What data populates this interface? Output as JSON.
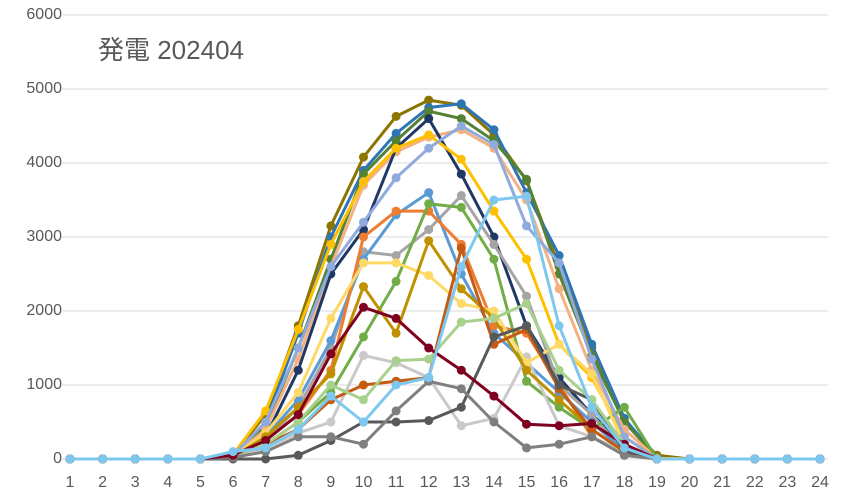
{
  "chart_data": {
    "type": "line",
    "title": "発電 202404",
    "x": [
      1,
      2,
      3,
      4,
      5,
      6,
      7,
      8,
      9,
      10,
      11,
      12,
      13,
      14,
      15,
      16,
      17,
      18,
      19,
      20,
      21,
      22,
      23,
      24
    ],
    "xlim": [
      1,
      24
    ],
    "ylim": [
      0,
      6000
    ],
    "yticks": [
      0,
      1000,
      2000,
      3000,
      4000,
      5000,
      6000
    ],
    "grid": true,
    "series": [
      {
        "color": "#8B7500",
        "values": [
          0,
          0,
          0,
          0,
          0,
          50,
          600,
          1800,
          3150,
          4080,
          4630,
          4850,
          4780,
          4380,
          3760,
          2600,
          1500,
          500,
          50,
          0,
          0,
          0,
          0,
          0
        ]
      },
      {
        "color": "#2E75B6",
        "values": [
          0,
          0,
          0,
          0,
          0,
          50,
          500,
          1700,
          3000,
          3900,
          4400,
          4750,
          4800,
          4450,
          3600,
          2750,
          1550,
          550,
          20,
          0,
          0,
          0,
          0,
          0
        ]
      },
      {
        "color": "#548235",
        "values": [
          0,
          0,
          0,
          0,
          0,
          50,
          450,
          1500,
          2700,
          3850,
          4300,
          4700,
          4600,
          4300,
          3780,
          2500,
          1400,
          500,
          20,
          0,
          0,
          0,
          0,
          0
        ]
      },
      {
        "color": "#F4B183",
        "values": [
          0,
          0,
          0,
          0,
          0,
          40,
          400,
          1350,
          2600,
          3700,
          4150,
          4350,
          4450,
          4200,
          3500,
          2300,
          1200,
          400,
          10,
          0,
          0,
          0,
          0,
          0
        ]
      },
      {
        "color": "#203864",
        "values": [
          0,
          0,
          0,
          0,
          0,
          40,
          300,
          1200,
          2500,
          3100,
          4200,
          4600,
          3850,
          3000,
          1800,
          1100,
          600,
          200,
          0,
          0,
          0,
          0,
          0,
          0
        ]
      },
      {
        "color": "#A5A5A5",
        "values": [
          0,
          0,
          0,
          0,
          0,
          30,
          250,
          700,
          1500,
          2800,
          2750,
          3100,
          3560,
          2900,
          2200,
          1000,
          600,
          100,
          0,
          0,
          0,
          0,
          0,
          0
        ]
      },
      {
        "color": "#FFC000",
        "values": [
          0,
          0,
          0,
          0,
          0,
          60,
          650,
          1750,
          2900,
          3750,
          4200,
          4380,
          4050,
          3350,
          2700,
          1550,
          1100,
          300,
          10,
          0,
          0,
          0,
          0,
          0
        ]
      },
      {
        "color": "#5B9BD5",
        "values": [
          0,
          0,
          0,
          0,
          0,
          40,
          300,
          800,
          1600,
          2700,
          3300,
          3600,
          2500,
          1700,
          1300,
          900,
          500,
          100,
          0,
          0,
          0,
          0,
          0,
          0
        ]
      },
      {
        "color": "#ED7D31",
        "values": [
          0,
          0,
          0,
          0,
          0,
          30,
          250,
          600,
          1200,
          3000,
          3350,
          3350,
          2900,
          1800,
          1700,
          1000,
          300,
          50,
          0,
          0,
          0,
          0,
          0,
          0
        ]
      },
      {
        "color": "#70AD47",
        "values": [
          0,
          0,
          0,
          0,
          0,
          30,
          200,
          500,
          900,
          1650,
          2400,
          3450,
          3400,
          2700,
          1050,
          700,
          400,
          700,
          0,
          0,
          0,
          0,
          0,
          0
        ]
      },
      {
        "color": "#C9C9C9",
        "values": [
          0,
          0,
          0,
          0,
          0,
          20,
          150,
          350,
          500,
          1400,
          1300,
          1100,
          450,
          550,
          1380,
          450,
          300,
          100,
          0,
          0,
          0,
          0,
          0,
          0
        ]
      },
      {
        "color": "#FFD966",
        "values": [
          0,
          0,
          0,
          0,
          0,
          40,
          350,
          900,
          1900,
          2650,
          2650,
          2480,
          2100,
          2000,
          1300,
          1550,
          1150,
          200,
          0,
          0,
          0,
          0,
          0,
          0
        ]
      },
      {
        "color": "#8FAADC",
        "values": [
          0,
          0,
          0,
          0,
          0,
          50,
          500,
          1500,
          2600,
          3200,
          3800,
          4200,
          4500,
          4250,
          3150,
          2650,
          1350,
          300,
          0,
          0,
          0,
          0,
          0,
          0
        ]
      },
      {
        "color": "#BF9000",
        "values": [
          0,
          0,
          0,
          0,
          0,
          30,
          300,
          700,
          1150,
          2330,
          1700,
          2950,
          2300,
          1900,
          1200,
          800,
          400,
          100,
          0,
          0,
          0,
          0,
          0,
          0
        ]
      },
      {
        "color": "#C55A11",
        "values": [
          0,
          0,
          0,
          0,
          0,
          30,
          200,
          400,
          800,
          1000,
          1050,
          1100,
          2850,
          1550,
          1750,
          950,
          400,
          100,
          0,
          0,
          0,
          0,
          0,
          0
        ]
      },
      {
        "color": "#595959",
        "values": [
          0,
          0,
          0,
          0,
          0,
          0,
          0,
          50,
          250,
          500,
          500,
          520,
          700,
          1650,
          1800,
          1000,
          800,
          100,
          0,
          0,
          0,
          0,
          0,
          0
        ]
      },
      {
        "color": "#A9D18E",
        "values": [
          0,
          0,
          0,
          0,
          0,
          30,
          200,
          500,
          1000,
          800,
          1330,
          1350,
          1850,
          1900,
          2100,
          1200,
          800,
          200,
          0,
          0,
          0,
          0,
          0,
          0
        ]
      },
      {
        "color": "#7F7F7F",
        "values": [
          0,
          0,
          0,
          0,
          0,
          20,
          100,
          300,
          300,
          200,
          650,
          1050,
          950,
          500,
          150,
          200,
          300,
          50,
          0,
          0,
          0,
          0,
          0,
          0
        ]
      },
      {
        "color": "#800020",
        "values": [
          0,
          0,
          0,
          0,
          0,
          50,
          250,
          600,
          1420,
          2050,
          1900,
          1500,
          1200,
          850,
          470,
          450,
          480,
          200,
          0,
          0,
          0,
          0,
          0,
          0
        ]
      },
      {
        "color": "#7EC8F0",
        "values": [
          0,
          0,
          0,
          0,
          0,
          100,
          150,
          400,
          850,
          500,
          1000,
          1100,
          2600,
          3500,
          3550,
          1800,
          700,
          150,
          0,
          0,
          0,
          0,
          0,
          0
        ]
      }
    ]
  }
}
